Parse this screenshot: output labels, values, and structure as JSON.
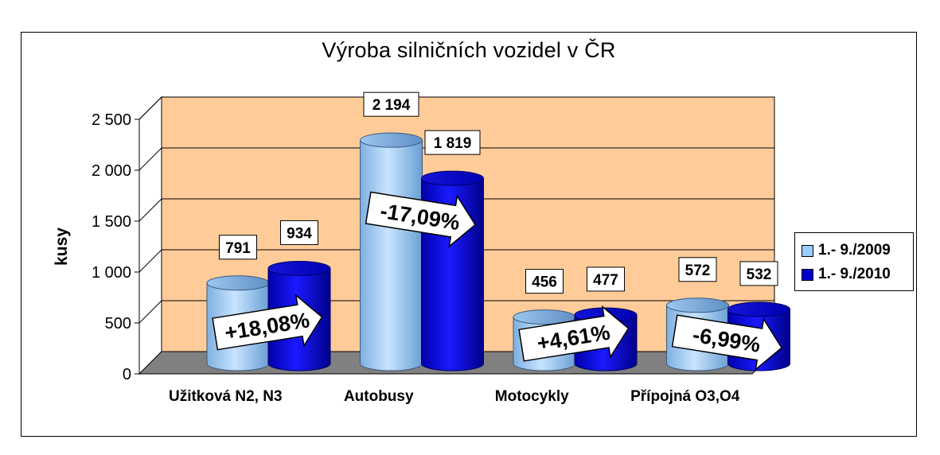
{
  "chart_data": {
    "type": "bar",
    "style": "3d-cylinder",
    "title": "Výroba silničních vozidel v ČR",
    "xlabel": "",
    "ylabel": "kusy",
    "ylim": [
      0,
      2500
    ],
    "yticks": [
      "0",
      "500",
      "1 000",
      "1 500",
      "2 000",
      "2 500"
    ],
    "ytick_values": [
      0,
      500,
      1000,
      1500,
      2000,
      2500
    ],
    "grid": true,
    "legend_position": "right",
    "categories": [
      "Užitková N2, N3",
      "Autobusy",
      "Motocykly",
      "Přípojná O3,O4"
    ],
    "series": [
      {
        "name": "1.- 9./2009",
        "values": [
          791,
          2194,
          456,
          572
        ],
        "labels": [
          "791",
          "2 194",
          "456",
          "572"
        ],
        "color": "#99CCFF"
      },
      {
        "name": "1.- 9./2010",
        "values": [
          934,
          1819,
          477,
          532
        ],
        "labels": [
          "934",
          "1 819",
          "477",
          "532"
        ],
        "color": "#0000CC"
      }
    ],
    "annotations": [
      "+18,08%",
      "-17,09%",
      "+4,61%",
      "-6,99%"
    ],
    "colors": {
      "plot_background": "#FFCC99",
      "floor": "#808080"
    }
  }
}
